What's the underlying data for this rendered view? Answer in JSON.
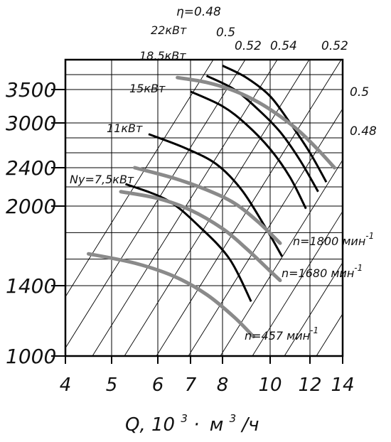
{
  "chart_data": {
    "type": "line",
    "x_ticks": [
      "4",
      "5",
      "6",
      "7",
      "8",
      "10",
      "12",
      "14"
    ],
    "y_ticks": [
      "1000",
      "1400",
      "2000",
      "2400",
      "3000",
      "3500"
    ],
    "xlabel": "Q, 10³· м³/ч",
    "grid": true,
    "speed_series": [
      {
        "name": "n=1800 мин⁻¹",
        "points": [
          [
            5.5,
            2400
          ],
          [
            6.5,
            2290
          ],
          [
            7.5,
            2170
          ],
          [
            8.5,
            2030
          ],
          [
            9.5,
            1880
          ],
          [
            10.5,
            1720
          ]
        ]
      },
      {
        "name": "n=1680 мин⁻¹",
        "points": [
          [
            5.2,
            2150
          ],
          [
            6,
            2080
          ],
          [
            7,
            1970
          ],
          [
            8,
            1830
          ],
          [
            9,
            1680
          ],
          [
            10,
            1510
          ],
          [
            10.5,
            1440
          ]
        ]
      },
      {
        "name": "n=457 мин⁻¹",
        "points": [
          [
            4.5,
            1640
          ],
          [
            5.5,
            1570
          ],
          [
            6.5,
            1470
          ],
          [
            7.5,
            1350
          ],
          [
            8.5,
            1220
          ],
          [
            9.3,
            1110
          ]
        ]
      },
      {
        "name": "",
        "points": [
          [
            6.6,
            3700
          ],
          [
            7.5,
            3620
          ],
          [
            8.5,
            3480
          ],
          [
            9.5,
            3310
          ],
          [
            10.5,
            3100
          ],
          [
            11.5,
            2880
          ],
          [
            12.5,
            2640
          ],
          [
            13.5,
            2400
          ]
        ]
      }
    ],
    "power_series": [
      {
        "name": "22кВт",
        "points": [
          [
            8,
            3900
          ],
          [
            9,
            3700
          ],
          [
            10,
            3400
          ],
          [
            11,
            3000
          ],
          [
            12,
            2600
          ],
          [
            13,
            2250
          ]
        ]
      },
      {
        "name": "18.5кВт",
        "points": [
          [
            7.5,
            3730
          ],
          [
            8.5,
            3500
          ],
          [
            9.5,
            3200
          ],
          [
            10.5,
            2880
          ],
          [
            11.5,
            2500
          ],
          [
            12.5,
            2150
          ]
        ]
      },
      {
        "name": "15кВт",
        "points": [
          [
            7,
            3470
          ],
          [
            8,
            3250
          ],
          [
            9,
            2980
          ],
          [
            10,
            2650
          ],
          [
            11,
            2300
          ],
          [
            11.8,
            1980
          ]
        ]
      },
      {
        "name": "11кВт",
        "points": [
          [
            5.8,
            2850
          ],
          [
            6.8,
            2670
          ],
          [
            7.8,
            2450
          ],
          [
            8.8,
            2170
          ],
          [
            9.8,
            1840
          ],
          [
            10.6,
            1620
          ]
        ]
      },
      {
        "name": "Ny=7,5кВт",
        "points": [
          [
            5.3,
            2230
          ],
          [
            6.3,
            2060
          ],
          [
            7.3,
            1840
          ],
          [
            8.3,
            1600
          ],
          [
            9.2,
            1310
          ]
        ]
      }
    ],
    "efficiency_labels": [
      "η=0.48",
      "0.5",
      "0.52",
      "0.54",
      "0.52",
      "0.5",
      "0.48"
    ],
    "speed_labels": [
      "n=1800 мин",
      "n=1680 мин",
      "n=457 мин"
    ],
    "speed_label_exponent": "-1"
  },
  "axis": {
    "x_unit_q": "Q, 10",
    "x_unit_exp1": "3",
    "x_unit_dot": "·",
    "x_unit_m": "м",
    "x_unit_exp2": "3",
    "x_unit_per": "/ч"
  }
}
